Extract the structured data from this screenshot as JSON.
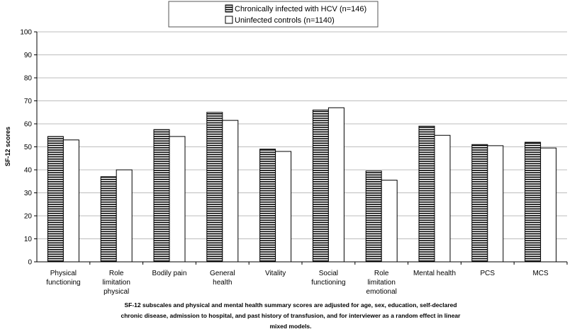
{
  "chart_data": {
    "type": "bar",
    "ylabel": "SF-12 scores",
    "ylim": [
      0,
      100
    ],
    "yticks": [
      0,
      10,
      20,
      30,
      40,
      50,
      60,
      70,
      80,
      90,
      100
    ],
    "grid": true,
    "legend_position": "top",
    "categories": [
      [
        "Physical",
        "functioning"
      ],
      [
        "Role",
        "limitation",
        "physical"
      ],
      [
        "Bodily pain"
      ],
      [
        "General",
        "health"
      ],
      [
        "Vitality"
      ],
      [
        "Social",
        "functioning"
      ],
      [
        "Role",
        "limitation",
        "emotional"
      ],
      [
        "Mental health"
      ],
      [
        "PCS"
      ],
      [
        "MCS"
      ]
    ],
    "series": [
      {
        "name": "Chronically infected with HCV (n=146)",
        "pattern": "horizontal-stripes",
        "values": [
          54.5,
          37,
          57.5,
          65,
          49,
          66,
          39.5,
          59,
          51,
          52
        ]
      },
      {
        "name": "Uninfected controls (n=1140)",
        "pattern": "white",
        "values": [
          53,
          40,
          54.5,
          61.5,
          48,
          67,
          35.5,
          55,
          50.5,
          49.5
        ]
      }
    ]
  },
  "footnote": [
    "SF-12 subscales and physical and mental health summary scores are adjusted for age, sex, education, self-declared",
    "chronic disease, admission to hospital, and past history of transfusion, and for interviewer as a random effect in linear",
    "mixed models."
  ],
  "colors": {
    "axis": "#000000",
    "grid": "#bdbdbd",
    "stripe": "#000000",
    "fill": "#ffffff"
  }
}
